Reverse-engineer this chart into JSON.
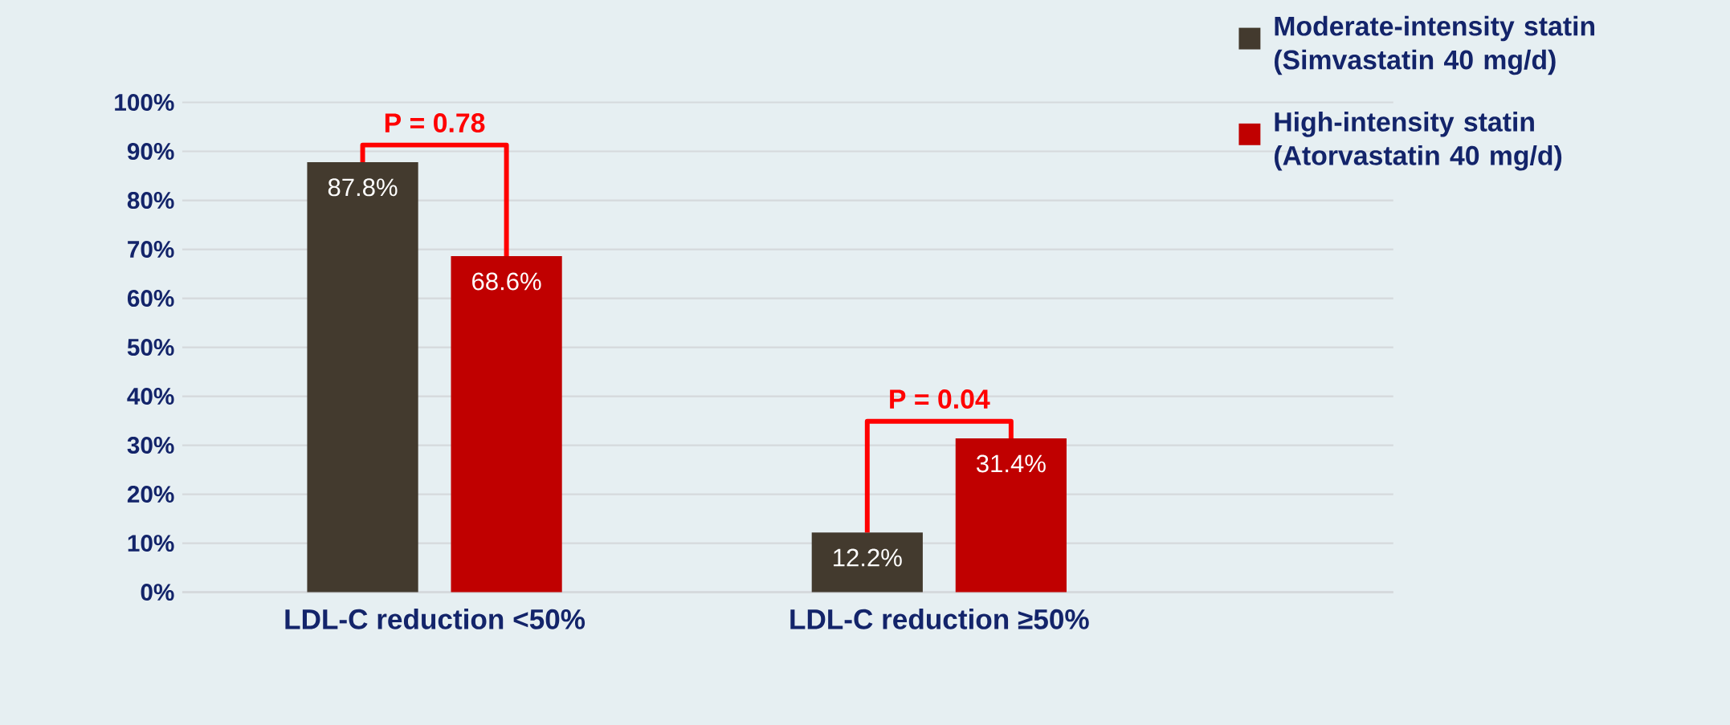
{
  "chart_data": {
    "type": "bar",
    "categories": [
      "LDL-C reduction <50%",
      "LDL-C reduction ≥50%"
    ],
    "series": [
      {
        "name": "Moderate-intensity statin (Simvastatin 40 mg/d)",
        "color": "#433a2e",
        "values": [
          87.8,
          12.2
        ],
        "value_labels": [
          "87.8%",
          "12.2%"
        ]
      },
      {
        "name": "High-intensity statin (Atorvastatin 40 mg/d)",
        "color": "#c00000",
        "values": [
          68.6,
          31.4
        ],
        "value_labels": [
          "68.6%",
          "31.4%"
        ]
      }
    ],
    "ylim": [
      0,
      100
    ],
    "yticks": [
      {
        "value": 0,
        "label": "0%"
      },
      {
        "value": 10,
        "label": "10%"
      },
      {
        "value": 20,
        "label": "20%"
      },
      {
        "value": 30,
        "label": "30%"
      },
      {
        "value": 40,
        "label": "40%"
      },
      {
        "value": 50,
        "label": "50%"
      },
      {
        "value": 60,
        "label": "60%"
      },
      {
        "value": 70,
        "label": "70%"
      },
      {
        "value": 80,
        "label": "80%"
      },
      {
        "value": 90,
        "label": "90%"
      },
      {
        "value": 100,
        "label": "100%"
      }
    ],
    "grid": "y",
    "legend": "top right",
    "annotations": [
      "P = 0.78",
      "P = 0.04"
    ]
  }
}
